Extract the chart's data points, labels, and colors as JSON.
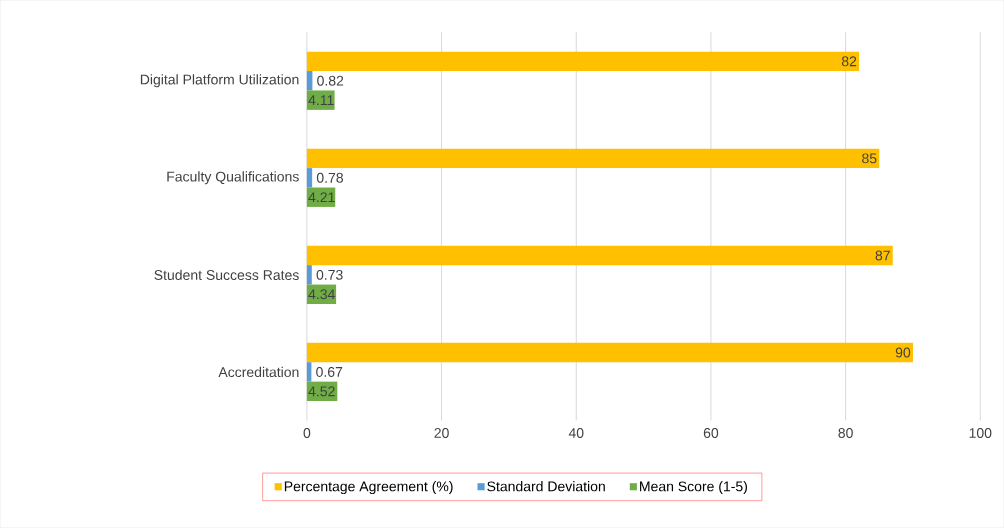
{
  "chart_data": {
    "type": "bar",
    "orientation": "horizontal",
    "categories": [
      "Digital Platform Utilization",
      "Faculty Qualifications",
      "Student Success Rates",
      "Accreditation"
    ],
    "series": [
      {
        "name": "Percentage Agreement (%)",
        "color": "#ffc000",
        "values": [
          82,
          85,
          87,
          90
        ]
      },
      {
        "name": "Standard Deviation",
        "color": "#5b9bd5",
        "values": [
          0.82,
          0.78,
          0.73,
          0.67
        ]
      },
      {
        "name": "Mean Score (1-5)",
        "color": "#70ad47",
        "values": [
          4.11,
          4.21,
          4.34,
          4.52
        ]
      }
    ],
    "xlim": [
      0,
      100
    ],
    "xticks": [
      0,
      20,
      40,
      60,
      80,
      100
    ],
    "grid": "x",
    "legend": "bottom",
    "data_labels": true
  }
}
